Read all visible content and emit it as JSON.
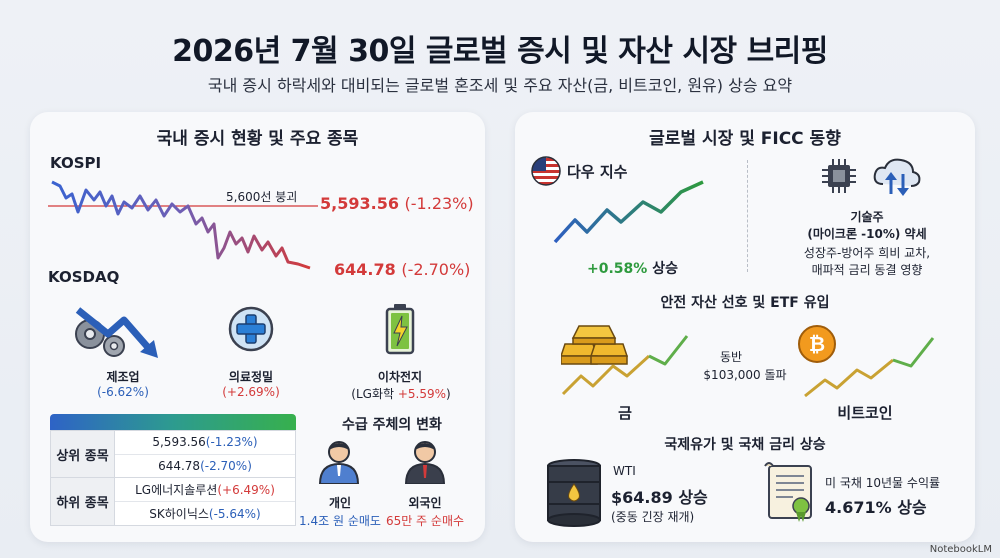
{
  "header": {
    "title": "2026년 7월 30일 글로벌 증시 및 자산 시장 브리핑",
    "subtitle": "국내 증시 하락세와 대비되는 글로벌 혼조세 및 주요 자산(금, 비트코인, 원유) 상승 요약"
  },
  "domestic": {
    "panel_title": "국내 증시 현황 및 주요 종목",
    "kospi_label": "KOSPI",
    "kosdaq_label": "KOSDAQ",
    "threshold_note": "5,600선 붕괴",
    "kospi_value": "5,593.56",
    "kospi_change": "(-1.23%)",
    "kosdaq_value": "644.78",
    "kosdaq_change": "(-2.70%)",
    "sectors": [
      {
        "name": "제조업",
        "change": "(-6.62%)",
        "icon": "gears-down-icon"
      },
      {
        "name": "의료정밀",
        "change": "(+2.69%)",
        "icon": "medical-cross-icon"
      },
      {
        "name": "이차전지",
        "sub": "(LG화학 ",
        "change": "+5.59%",
        "tail": ")",
        "icon": "battery-icon"
      }
    ],
    "table": {
      "top_label": "상위 종목",
      "bottom_label": "하위 종목",
      "top_rows": [
        {
          "value": "5,593.56 ",
          "change": "(-1.23%)"
        },
        {
          "value": "644.78 ",
          "change": "(-2.70%)"
        }
      ],
      "bottom_rows": [
        {
          "value": "LG에너지솔루션 ",
          "change": "(+6.49%)"
        },
        {
          "value": "SK하이닉스 ",
          "change": "(-5.64%)"
        }
      ]
    },
    "flows": {
      "title": "수급 주체의 변화",
      "individual_label": "개인",
      "individual_value": "1.4조 원 순매도",
      "foreign_label": "외국인",
      "foreign_value": "65만 주 순매수"
    }
  },
  "global": {
    "panel_title": "글로벌 시장 및 FICC 동향",
    "dow_label": "다우 지수",
    "dow_change": "+0.58% ",
    "dow_word": "상승",
    "tech_title": "기술주",
    "tech_sub": "(마이크론 -10%) 약세",
    "tech_note1": "성장주-방어주 희비 교차,",
    "tech_note2": "매파적 금리 동결 영향",
    "safe_title": "안전 자산 선호 및 ETF 유입",
    "gold_label": "금",
    "bitcoin_label": "비트코인",
    "together_label": "동반",
    "btc_price": "$103,000 돌파",
    "oil_title": "국제유가 및 국채 금리 상승",
    "wti_label": "WTI",
    "wti_value": "$64.89 상승",
    "wti_note": "(중동 긴장 재개)",
    "bond_label": "미 국채 10년물 수익률",
    "bond_value": "4.671% 상승"
  },
  "footer": {
    "brand": "NotebookLM"
  },
  "colors": {
    "red": "#d33a3a",
    "blue": "#2b5fb8",
    "green": "#2e9a3e"
  }
}
